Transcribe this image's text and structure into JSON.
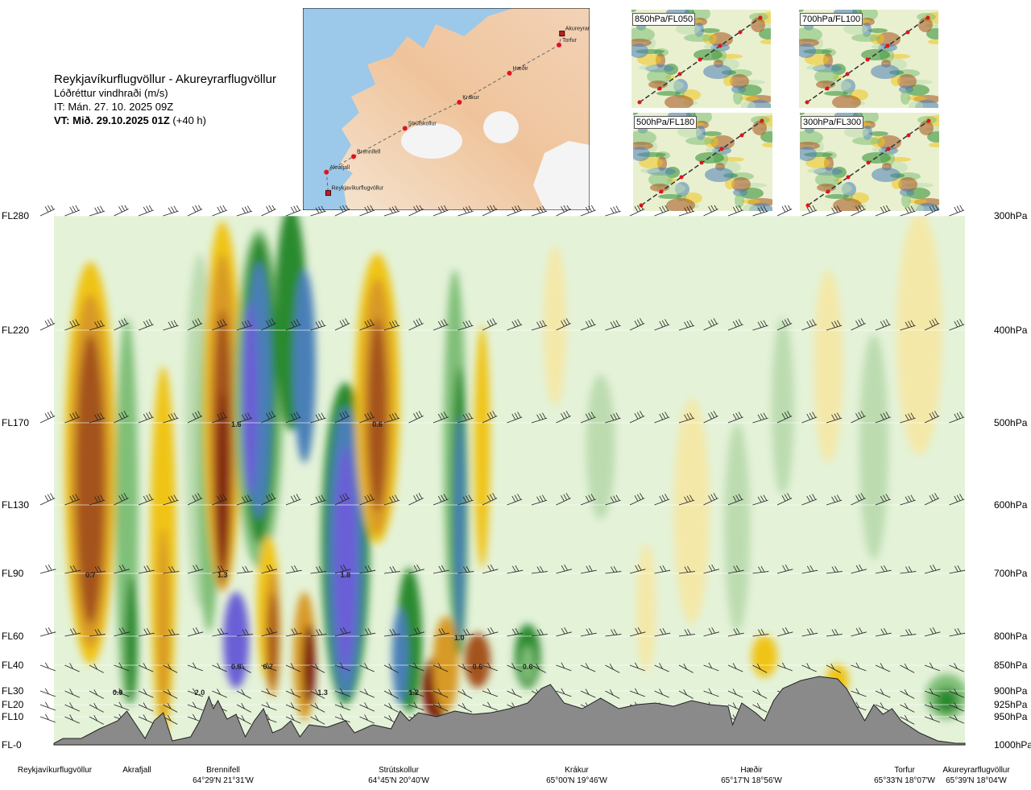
{
  "header": {
    "route": "Reykjavíkurflugvöllur - Akureyrarflugvöllur",
    "product": "Lóðréttur vindhraði (m/s)",
    "issue_time": "IT: Mán. 27. 10. 2025 09Z",
    "valid_prefix": "VT: Mið. 29.10.2025 01Z",
    "valid_suffix": "(+40 h)"
  },
  "route_map": {
    "points": [
      {
        "name": "Akureyrarflugvöllur",
        "lon": -18.07,
        "lat": 65.66,
        "marker": "square"
      },
      {
        "name": "Torfur",
        "lon": -18.12,
        "lat": 65.55,
        "marker": "dot"
      },
      {
        "name": "Hæðir",
        "lon": -18.94,
        "lat": 65.28,
        "marker": "dot"
      },
      {
        "name": "Krákur",
        "lon": -19.77,
        "lat": 65.0,
        "marker": "dot"
      },
      {
        "name": "Strútskollur",
        "lon": -20.67,
        "lat": 64.75,
        "marker": "dot"
      },
      {
        "name": "Brennifell",
        "lon": -21.52,
        "lat": 64.48,
        "marker": "dot"
      },
      {
        "name": "Akrafjall",
        "lon": -21.97,
        "lat": 64.33,
        "marker": "dot"
      },
      {
        "name": "Reykjavíkurflugvöllur",
        "lon": -21.94,
        "lat": 64.13,
        "marker": "square"
      }
    ]
  },
  "thumbnails": [
    {
      "label": "850hPa/FL050"
    },
    {
      "label": "700hPa/FL100"
    },
    {
      "label": "500hPa/FL180"
    },
    {
      "label": "300hPa/FL300"
    }
  ],
  "chart_data": {
    "type": "heatmap",
    "title": "Lóðréttur vindhraði (m/s)",
    "xlabel": "",
    "ylabel": "",
    "y_levels": [
      {
        "fl": "FL280",
        "hpa": "300hPa"
      },
      {
        "fl": "FL220",
        "hpa": "400hPa"
      },
      {
        "fl": "FL170",
        "hpa": "500hPa"
      },
      {
        "fl": "FL130",
        "hpa": "600hPa"
      },
      {
        "fl": "FL90",
        "hpa": "700hPa"
      },
      {
        "fl": "FL60",
        "hpa": "800hPa"
      },
      {
        "fl": "FL40",
        "hpa": "850hPa"
      },
      {
        "fl": "FL30",
        "hpa": "900hPa"
      },
      {
        "fl": "FL20",
        "hpa": "925hPa"
      },
      {
        "fl": "FL10",
        "hpa": "950hPa"
      },
      {
        "fl": "FL-0",
        "hpa": "1000hPa"
      }
    ],
    "stations": [
      {
        "name": "Reykjavíkurflugvöllur",
        "coord": ""
      },
      {
        "name": "Akrafjall",
        "coord": ""
      },
      {
        "name": "Brennifell",
        "coord": "64°29'N 21°31'W"
      },
      {
        "name": "Strútskollur",
        "coord": "64°45'N 20°40'W"
      },
      {
        "name": "Krákur",
        "coord": "65°00'N 19°46'W"
      },
      {
        "name": "Hæðir",
        "coord": "65°17'N 18°56'W"
      },
      {
        "name": "Torfur",
        "coord": "65°33'N 18°07'W"
      },
      {
        "name": "Akureyrarflugvöllur",
        "coord": "65°39'N 18°04'W"
      }
    ],
    "value_labels": [
      {
        "text": "1.6",
        "station_pos": 0.2,
        "level": "500hPa"
      },
      {
        "text": "0.6",
        "station_pos": 0.355,
        "level": "500hPa"
      },
      {
        "text": "0.7",
        "station_pos": 0.04,
        "level": "700hPa"
      },
      {
        "text": "1.3",
        "station_pos": 0.185,
        "level": "700hPa"
      },
      {
        "text": "1.8",
        "station_pos": 0.32,
        "level": "700hPa"
      },
      {
        "text": "1.0",
        "station_pos": 0.445,
        "level": "800hPa"
      },
      {
        "text": "0.8",
        "station_pos": 0.2,
        "level": "850hPa"
      },
      {
        "text": "0.7",
        "station_pos": 0.235,
        "level": "850hPa"
      },
      {
        "text": "0.6",
        "station_pos": 0.465,
        "level": "850hPa"
      },
      {
        "text": "0.6",
        "station_pos": 0.52,
        "level": "850hPa"
      },
      {
        "text": "0.9",
        "station_pos": 0.07,
        "level": "900hPa"
      },
      {
        "text": "2.0",
        "station_pos": 0.16,
        "level": "900hPa"
      },
      {
        "text": "1.3",
        "station_pos": 0.295,
        "level": "900hPa"
      },
      {
        "text": "1.2",
        "station_pos": 0.395,
        "level": "900hPa"
      }
    ],
    "colors": {
      "strong_down": "#7a1e10",
      "down2": "#a4521a",
      "down3": "#d89a25",
      "down4": "#f0c419",
      "weak_down": "#f4e8a8",
      "neutral": "#e4f2d8",
      "weak_up": "#bcdcb0",
      "up2": "#7fbf78",
      "up3": "#2a8a2e",
      "up4": "#4a7fb8",
      "strong_up": "#6a5fd6",
      "terrain": "#8a8a8a"
    }
  }
}
